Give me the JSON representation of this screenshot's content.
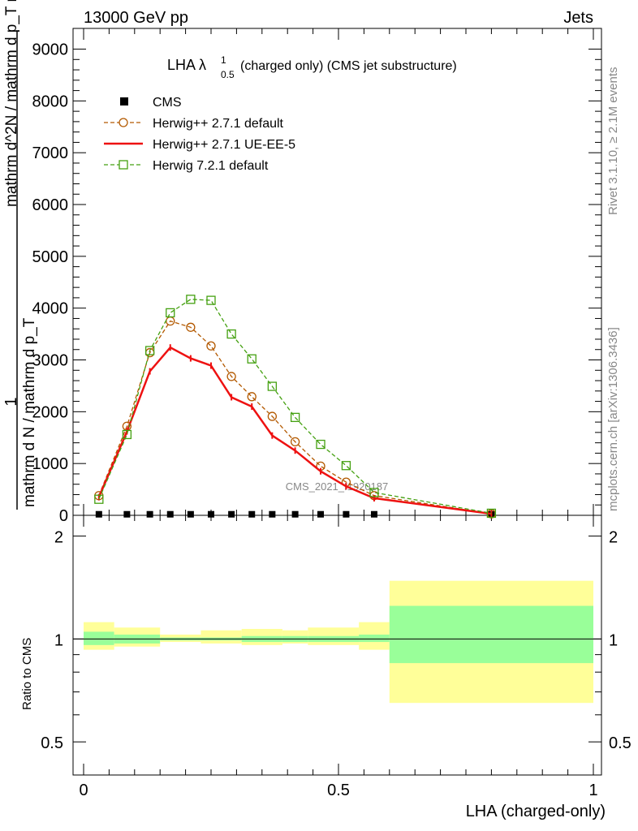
{
  "header": {
    "left": "13000 GeV pp",
    "right": "Jets"
  },
  "side": {
    "rivet": "Rivet 3.1.10, ≥ 2.1M events",
    "mcplots": "mcplots.cern.ch [arXiv:1306.3436]"
  },
  "title": {
    "main": "LHA λ",
    "sup": "1",
    "sub": "0.5",
    "rest": " (charged only) (CMS jet substructure)"
  },
  "watermark": "CMS_2021_I1920187",
  "ylabel_top": {
    "numerator": "1",
    "denominator": "mathrm d N / mathrm d p_T"
  },
  "ylabel_mid": "mathrm d^2N / mathrm d p_T mathrm d lambda",
  "ratio_ylabel": "Ratio to CMS",
  "xlabel": "LHA (charged-only)",
  "main_yticks": [
    "0",
    "1000",
    "2000",
    "3000",
    "4000",
    "5000",
    "6000",
    "7000",
    "8000",
    "9000"
  ],
  "ratio_yticks": [
    "0.5",
    "1",
    "2"
  ],
  "xticks": [
    "0",
    "0.5",
    "1"
  ],
  "colors": {
    "cms": "#000000",
    "h_def": "#b35900",
    "h_ue": "#ee1111",
    "h7": "#44a010",
    "band_in": "#99ff99",
    "band_out": "#ffff99"
  },
  "chart_data": {
    "type": "line",
    "xlim": [
      0,
      1
    ],
    "ylim": [
      0,
      9400
    ],
    "ratio_ylim": [
      0.4,
      2.3
    ],
    "ratio_scale": "log",
    "bin_edges": [
      0,
      0.06,
      0.11,
      0.15,
      0.19,
      0.23,
      0.27,
      0.31,
      0.35,
      0.39,
      0.44,
      0.49,
      0.54,
      0.6,
      1.0
    ],
    "x": [
      0.03,
      0.085,
      0.13,
      0.17,
      0.21,
      0.25,
      0.29,
      0.33,
      0.37,
      0.415,
      0.465,
      0.515,
      0.57,
      0.8
    ],
    "series": [
      {
        "name": "CMS",
        "marker": "square",
        "values": [
          20,
          20,
          20,
          20,
          20,
          20,
          20,
          20,
          20,
          20,
          20,
          20,
          20,
          20
        ]
      },
      {
        "name": "Herwig++ 2.7.1 default",
        "marker": "circle",
        "line": "dashed",
        "values": [
          380,
          1720,
          3140,
          3750,
          3630,
          3270,
          2680,
          2290,
          1910,
          1420,
          950,
          640,
          380,
          30
        ]
      },
      {
        "name": "Herwig++ 2.7.1 UE-EE-5",
        "marker": "none",
        "line": "solid",
        "values": [
          350,
          1620,
          2780,
          3240,
          3030,
          2890,
          2280,
          2100,
          1540,
          1250,
          850,
          560,
          330,
          30
        ]
      },
      {
        "name": "Herwig 7.2.1 default",
        "marker": "open-square",
        "line": "dashed",
        "values": [
          310,
          1560,
          3180,
          3910,
          4170,
          4150,
          3500,
          3020,
          2490,
          1890,
          1370,
          960,
          440,
          40
        ]
      }
    ],
    "ratio_bands": {
      "inner": [
        [
          0.96,
          1.05
        ],
        [
          0.97,
          1.03
        ],
        [
          0.99,
          1.01
        ],
        [
          0.99,
          1.01
        ],
        [
          0.98,
          1.02
        ],
        [
          0.98,
          1.02
        ],
        [
          0.98,
          1.02
        ],
        [
          0.98,
          1.03
        ],
        [
          0.85,
          1.25
        ]
      ],
      "outer": [
        [
          0.93,
          1.12
        ],
        [
          0.95,
          1.08
        ],
        [
          0.98,
          1.03
        ],
        [
          0.97,
          1.06
        ],
        [
          0.96,
          1.07
        ],
        [
          0.97,
          1.06
        ],
        [
          0.96,
          1.08
        ],
        [
          0.93,
          1.12
        ],
        [
          0.65,
          1.48
        ]
      ],
      "bins": [
        [
          0,
          0.06
        ],
        [
          0.06,
          0.15
        ],
        [
          0.15,
          0.23
        ],
        [
          0.23,
          0.31
        ],
        [
          0.31,
          0.39
        ],
        [
          0.39,
          0.44
        ],
        [
          0.44,
          0.54
        ],
        [
          0.54,
          0.6
        ],
        [
          0.6,
          1.0
        ]
      ]
    },
    "legend_position": "top-left"
  }
}
